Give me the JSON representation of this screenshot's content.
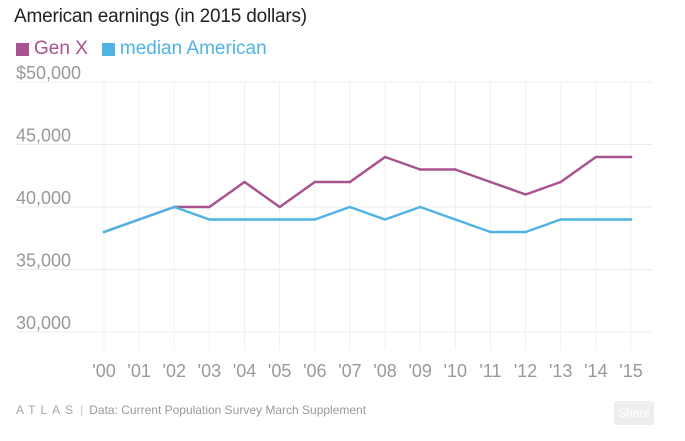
{
  "chart_data": {
    "type": "line",
    "title": "American earnings (in 2015 dollars)",
    "categories": [
      "'00",
      "'01",
      "'02",
      "'03",
      "'04",
      "'05",
      "'06",
      "'07",
      "'08",
      "'09",
      "'10",
      "'11",
      "'12",
      "'13",
      "'14",
      "'15"
    ],
    "series": [
      {
        "name": "Gen X",
        "color": "#a8528f",
        "values": [
          38000,
          39000,
          40000,
          40000,
          42000,
          40000,
          42000,
          42000,
          44000,
          43000,
          43000,
          42000,
          41000,
          42000,
          44000,
          44000
        ]
      },
      {
        "name": "median American",
        "color": "#4fb3e3",
        "values": [
          38000,
          39000,
          40000,
          39000,
          39000,
          39000,
          39000,
          40000,
          39000,
          40000,
          39000,
          38000,
          38000,
          39000,
          39000,
          39000
        ]
      }
    ],
    "ylim": [
      30000,
      50000
    ],
    "yticks": [
      {
        "value": 50000,
        "label": "$50,000"
      },
      {
        "value": 45000,
        "label": "45,000"
      },
      {
        "value": 40000,
        "label": "40,000"
      },
      {
        "value": 35000,
        "label": "35,000"
      },
      {
        "value": 30000,
        "label": "30,000"
      }
    ],
    "grid": true,
    "legend_position": "top-left"
  },
  "footer": {
    "logo": "ATLAS",
    "separator": "|",
    "source": "Data: Current Population Survey March Supplement",
    "share_label": "Share"
  }
}
